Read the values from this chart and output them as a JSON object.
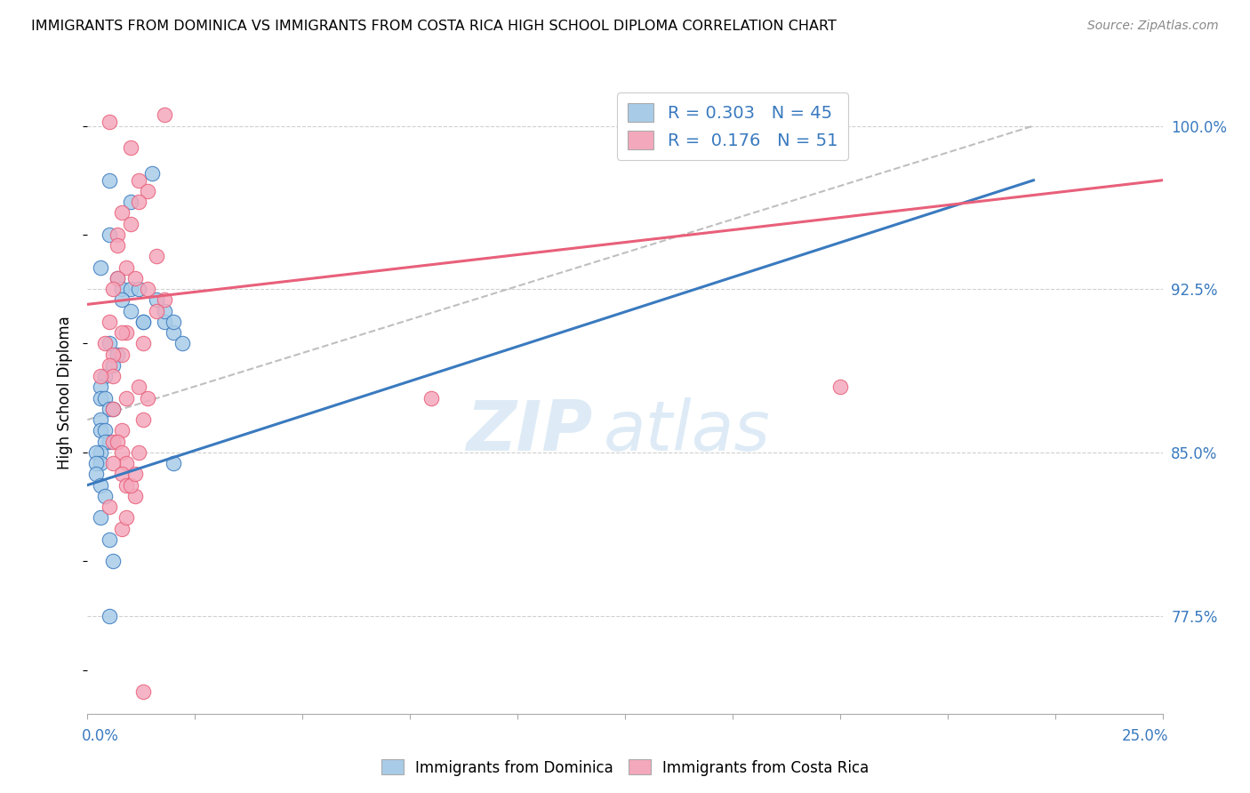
{
  "title": "IMMIGRANTS FROM DOMINICA VS IMMIGRANTS FROM COSTA RICA HIGH SCHOOL DIPLOMA CORRELATION CHART",
  "source": "Source: ZipAtlas.com",
  "ylabel": "High School Diploma",
  "xlim": [
    0.0,
    0.25
  ],
  "ylim": [
    73.0,
    102.5
  ],
  "legend_r_blue": "0.303",
  "legend_n_blue": "45",
  "legend_r_pink": "0.176",
  "legend_n_pink": "51",
  "blue_color": "#a8cce8",
  "pink_color": "#f4a8bc",
  "blue_line_color": "#3a7abf",
  "pink_line_color": "#e8607a",
  "dashed_line_color": "#b0b0b0",
  "watermark_zip": "ZIP",
  "watermark_atlas": "atlas",
  "grid_color": "#d0d0d0",
  "ytick_vals": [
    77.5,
    85.0,
    92.5,
    100.0
  ],
  "ytick_labels": [
    "77.5%",
    "85.0%",
    "92.5%",
    "100.0%"
  ],
  "blue_points_x": [
    0.005,
    0.01,
    0.015,
    0.005,
    0.003,
    0.007,
    0.008,
    0.01,
    0.012,
    0.008,
    0.01,
    0.013,
    0.018,
    0.02,
    0.005,
    0.007,
    0.006,
    0.004,
    0.003,
    0.003,
    0.004,
    0.005,
    0.006,
    0.003,
    0.003,
    0.004,
    0.005,
    0.004,
    0.003,
    0.002,
    0.003,
    0.002,
    0.002,
    0.003,
    0.004,
    0.016,
    0.018,
    0.02,
    0.022,
    0.003,
    0.005,
    0.006,
    0.013,
    0.005,
    0.02
  ],
  "blue_points_y": [
    97.5,
    96.5,
    97.8,
    95.0,
    93.5,
    93.0,
    92.5,
    92.5,
    92.5,
    92.0,
    91.5,
    91.0,
    91.0,
    90.5,
    90.0,
    89.5,
    89.0,
    88.5,
    88.0,
    87.5,
    87.5,
    87.0,
    87.0,
    86.5,
    86.0,
    86.0,
    85.5,
    85.5,
    85.0,
    85.0,
    84.5,
    84.5,
    84.0,
    83.5,
    83.0,
    92.0,
    91.5,
    91.0,
    90.0,
    82.0,
    81.0,
    80.0,
    91.0,
    77.5,
    84.5
  ],
  "pink_points_x": [
    0.005,
    0.018,
    0.01,
    0.012,
    0.014,
    0.012,
    0.008,
    0.01,
    0.007,
    0.007,
    0.016,
    0.009,
    0.011,
    0.007,
    0.006,
    0.014,
    0.018,
    0.016,
    0.005,
    0.009,
    0.008,
    0.013,
    0.004,
    0.008,
    0.006,
    0.005,
    0.006,
    0.003,
    0.012,
    0.014,
    0.009,
    0.006,
    0.013,
    0.008,
    0.006,
    0.007,
    0.008,
    0.009,
    0.006,
    0.008,
    0.009,
    0.011,
    0.175,
    0.005,
    0.008,
    0.009,
    0.01,
    0.011,
    0.012,
    0.013,
    0.08
  ],
  "pink_points_y": [
    100.2,
    100.5,
    99.0,
    97.5,
    97.0,
    96.5,
    96.0,
    95.5,
    95.0,
    94.5,
    94.0,
    93.5,
    93.0,
    93.0,
    92.5,
    92.5,
    92.0,
    91.5,
    91.0,
    90.5,
    90.5,
    90.0,
    90.0,
    89.5,
    89.5,
    89.0,
    88.5,
    88.5,
    88.0,
    87.5,
    87.5,
    87.0,
    86.5,
    86.0,
    85.5,
    85.5,
    85.0,
    84.5,
    84.5,
    84.0,
    83.5,
    83.0,
    88.0,
    82.5,
    81.5,
    82.0,
    83.5,
    84.0,
    85.0,
    74.0,
    87.5
  ],
  "blue_line_x": [
    0.0,
    0.22
  ],
  "blue_line_y": [
    83.5,
    97.5
  ],
  "pink_line_x": [
    0.0,
    0.25
  ],
  "pink_line_y": [
    91.8,
    97.5
  ],
  "dash_line_x": [
    0.0,
    0.22
  ],
  "dash_line_y": [
    86.5,
    100.0
  ]
}
